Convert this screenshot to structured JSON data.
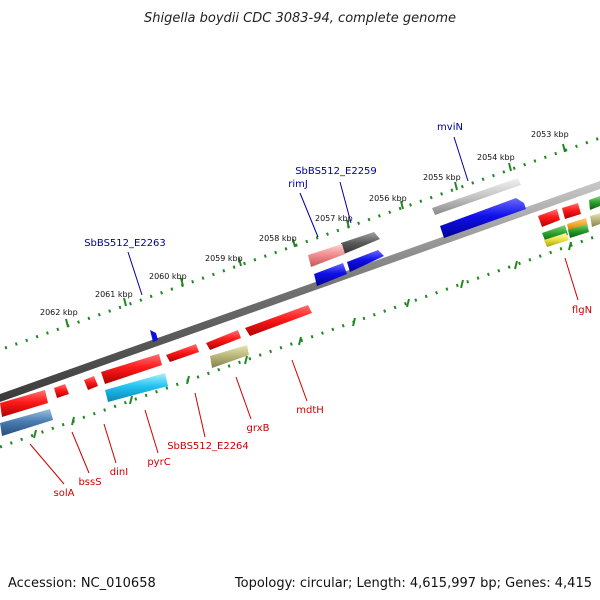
{
  "title": "Shigella boydii CDC 3083-94, complete genome",
  "footer": {
    "accession": "Accession: NC_010658",
    "topology": "Topology: circular; Length: 4,615,997 bp; Genes: 4,415"
  },
  "ticks": [
    "2053 kbp",
    "2054 kbp",
    "2055 kbp",
    "2056 kbp",
    "2057 kbp",
    "2058 kbp",
    "2059 kbp",
    "2060 kbp",
    "2061 kbp",
    "2062 kbp"
  ],
  "genes": [
    {
      "label": "mviN",
      "color": "#000099"
    },
    {
      "label": "SbBS512_E2259",
      "color": "#000099"
    },
    {
      "label": "rimJ",
      "color": "#000099"
    },
    {
      "label": "SbBS512_E2263",
      "color": "#000099"
    },
    {
      "label": "flgN",
      "color": "#cc0000"
    },
    {
      "label": "mdtH",
      "color": "#cc0000"
    },
    {
      "label": "grxB",
      "color": "#cc0000"
    },
    {
      "label": "SbBS512_E2264",
      "color": "#cc0000"
    },
    {
      "label": "pyrC",
      "color": "#cc0000"
    },
    {
      "label": "dinI",
      "color": "#cc0000"
    },
    {
      "label": "bssS",
      "color": "#cc0000"
    },
    {
      "label": "solA",
      "color": "#cc0000"
    }
  ],
  "colors": {
    "forward_cds": "#1010e0",
    "reverse_cds": "#ee1111",
    "backbone": "#777777",
    "tick_marks": "#228822"
  }
}
